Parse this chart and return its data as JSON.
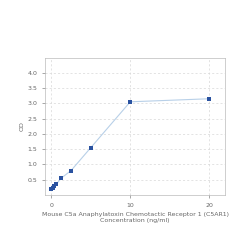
{
  "x": [
    0,
    0.156,
    0.3125,
    0.625,
    1.25,
    2.5,
    5,
    10,
    20
  ],
  "y": [
    0.2,
    0.22,
    0.28,
    0.35,
    0.55,
    0.8,
    1.55,
    3.05,
    3.15
  ],
  "xlabel_line1": "Mouse C5a Anaphylatoxin Chemotactic Receptor 1 (C5AR1)",
  "xlabel_line2": "Concentration (ng/ml)",
  "ylabel": "OD",
  "xlim": [
    -0.8,
    22
  ],
  "ylim": [
    0,
    4.5
  ],
  "yticks": [
    0.5,
    1,
    1.5,
    2,
    2.5,
    3,
    3.5,
    4
  ],
  "xticks": [
    0,
    10,
    20
  ],
  "line_color": "#b8d0e8",
  "marker_color": "#2a52a0",
  "grid_color": "#d8d8d8",
  "bg_color": "#ffffff",
  "label_fontsize": 4.5,
  "tick_fontsize": 4.5
}
